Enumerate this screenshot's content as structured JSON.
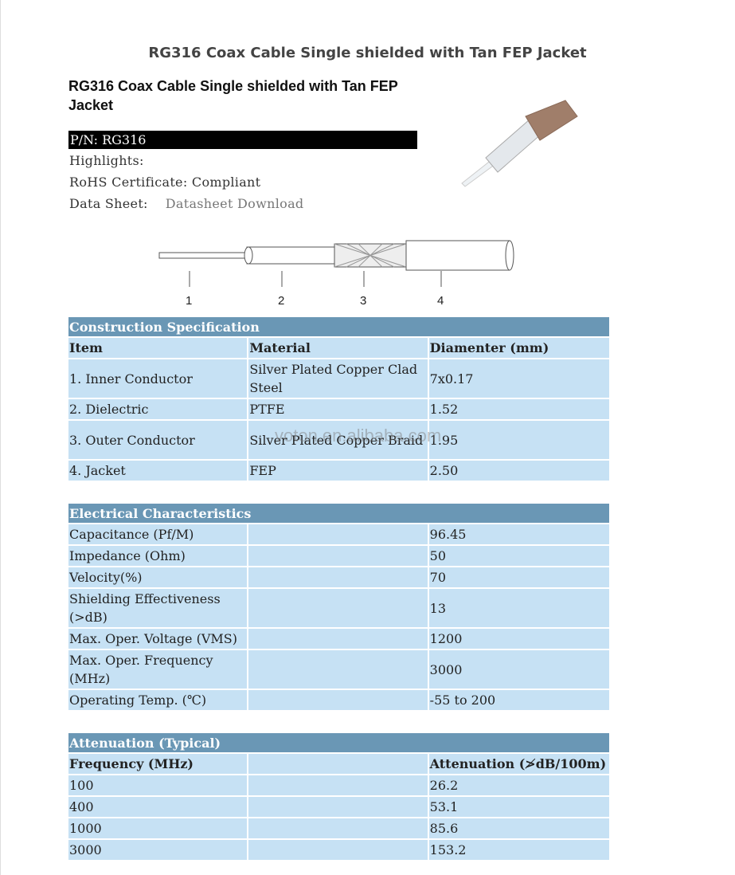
{
  "page_title": "RG316 Coax Cable Single shielded with Tan FEP Jacket",
  "product_heading": "RG316 Coax Cable Single shielded with Tan FEP Jacket",
  "part_number": "P/N: RG316",
  "highlights_label": "Highlights:",
  "rohs": "RoHS Certificate: Compliant",
  "datasheet_label": "Data Sheet:",
  "datasheet_link": "Datasheet Download",
  "diagram_labels": [
    "1",
    "2",
    "3",
    "4"
  ],
  "watermark": "voton.en.alibaba.com",
  "construction": {
    "title": "Construction Specification",
    "headers": [
      "Item",
      "Material",
      "Diamenter (mm)"
    ],
    "rows": [
      [
        "1. Inner Conductor",
        "Silver Plated Copper Clad Steel",
        "7x0.17"
      ],
      [
        "2. Dielectric",
        "PTFE",
        "1.52"
      ],
      [
        "3. Outer Conductor",
        "Silver Plated Copper Braid",
        "1.95"
      ],
      [
        "4. Jacket",
        "FEP",
        "2.50"
      ]
    ]
  },
  "electrical": {
    "title": "Electrical Characteristics",
    "rows": [
      [
        "Capacitance (Pf/M)",
        "",
        "96.45"
      ],
      [
        "Impedance (Ohm)",
        "",
        "50"
      ],
      [
        "Velocity(%)",
        "",
        "70"
      ],
      [
        "Shielding Effectiveness (>dB)",
        "",
        "13"
      ],
      [
        "Max. Oper. Voltage (VMS)",
        "",
        "1200"
      ],
      [
        "Max. Oper. Frequency (MHz)",
        "",
        "3000"
      ],
      [
        "Operating Temp. (℃)",
        "",
        "-55 to 200"
      ]
    ]
  },
  "attenuation": {
    "title": "Attenuation (Typical)",
    "headers": [
      "Frequency (MHz)",
      "",
      "Attenuation (≯dB/100m)"
    ],
    "rows": [
      [
        "100",
        "",
        "26.2"
      ],
      [
        "400",
        "",
        "53.1"
      ],
      [
        "1000",
        "",
        "85.6"
      ],
      [
        "3000",
        "",
        "153.2"
      ]
    ]
  },
  "colors": {
    "header": "#6a97b5",
    "row": "#c6e1f4"
  }
}
